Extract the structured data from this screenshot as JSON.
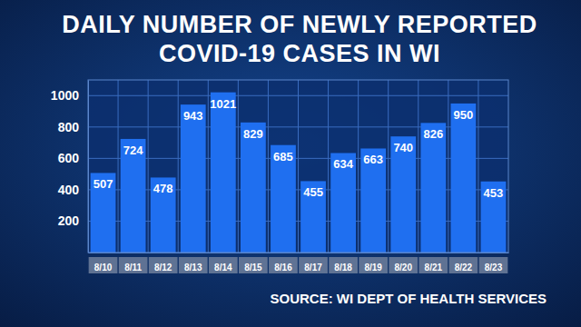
{
  "chart_data": {
    "type": "bar",
    "title": [
      "DAILY NUMBER OF NEWLY REPORTED",
      "COVID-19 CASES IN WI"
    ],
    "source": "SOURCE: WI DEPT OF HEALTH SERVICES",
    "categories": [
      "8/10",
      "8/11",
      "8/12",
      "8/13",
      "8/14",
      "8/15",
      "8/16",
      "8/17",
      "8/18",
      "8/19",
      "8/20",
      "8/21",
      "8/22",
      "8/23"
    ],
    "values": [
      507,
      724,
      478,
      943,
      1021,
      829,
      685,
      455,
      634,
      663,
      740,
      826,
      950,
      453
    ],
    "color": "#1f6ff0",
    "ylim": [
      0,
      1100
    ],
    "yticks": [
      200,
      400,
      600,
      800,
      1000
    ],
    "grid": true,
    "data_labels": true
  }
}
